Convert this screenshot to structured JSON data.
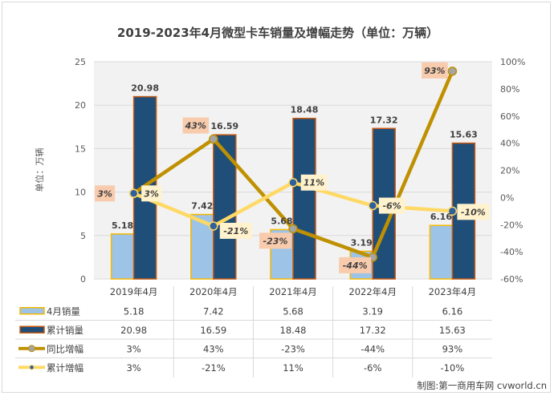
{
  "chart_data": {
    "type": "bar",
    "title": "2019-2023年4月微型卡车销量及增幅走势（单位：万辆）",
    "ylabel": "单位：万辆",
    "xlabel": "",
    "ylim": [
      0,
      25
    ],
    "y_ticks": [
      "0",
      "5",
      "10",
      "15",
      "20",
      "25"
    ],
    "y_tick_values": [
      0,
      5,
      10,
      15,
      20,
      25
    ],
    "y2lim": [
      -60,
      100
    ],
    "y2_ticks": [
      "-60%",
      "-40%",
      "-20%",
      "0%",
      "20%",
      "40%",
      "60%",
      "80%",
      "100%"
    ],
    "y2_tick_values": [
      -60,
      -40,
      -20,
      0,
      20,
      40,
      60,
      80,
      100
    ],
    "grid": true,
    "legend": "data-table-bottom",
    "categories": [
      "2019年4月",
      "2020年4月",
      "2021年4月",
      "2022年4月",
      "2023年4月"
    ],
    "series": [
      {
        "name": "4月销量",
        "kind": "bar",
        "axis": "left",
        "values": [
          5.18,
          7.42,
          5.68,
          3.19,
          6.16
        ],
        "labels": [
          "5.18",
          "7.42",
          "5.68",
          "3.19",
          "6.16"
        ],
        "color": "#9dc3e6",
        "edge_color": "#f5b800"
      },
      {
        "name": "累计销量",
        "kind": "bar",
        "axis": "left",
        "values": [
          20.98,
          16.59,
          18.48,
          17.32,
          15.63
        ],
        "labels": [
          "20.98",
          "16.59",
          "18.48",
          "17.32",
          "15.63"
        ],
        "color": "#1f4e79",
        "edge_color": "#c55a11"
      },
      {
        "name": "同比增幅",
        "kind": "line",
        "axis": "right",
        "values": [
          3,
          43,
          -23,
          -44,
          93
        ],
        "labels": [
          "3%",
          "43%",
          "-23%",
          "-44%",
          "93%"
        ],
        "color": "#bf9000",
        "marker_color": "#a5a5a5",
        "label_bg": "#f8cbad"
      },
      {
        "name": "累计增幅",
        "kind": "line",
        "axis": "right",
        "values": [
          3,
          -21,
          11,
          -6,
          -10
        ],
        "labels": [
          "3%",
          "-21%",
          "11%",
          "-6%",
          "-10%"
        ],
        "color": "#ffd966",
        "marker_color": "#2e5f9e",
        "label_bg": "#fff2cc"
      }
    ],
    "table_rows": [
      [
        "5.18",
        "7.42",
        "5.68",
        "3.19",
        "6.16"
      ],
      [
        "20.98",
        "16.59",
        "18.48",
        "17.32",
        "15.63"
      ],
      [
        "3%",
        "43%",
        "-23%",
        "-44%",
        "93%"
      ],
      [
        "3%",
        "-21%",
        "11%",
        "-6%",
        "-10%"
      ]
    ]
  },
  "credit": "制图:第一商用车网 cvworld.cn",
  "colors": {
    "plot_bg": "#f2f2f2",
    "grid": "#d9d9d9",
    "text": "#404040"
  }
}
